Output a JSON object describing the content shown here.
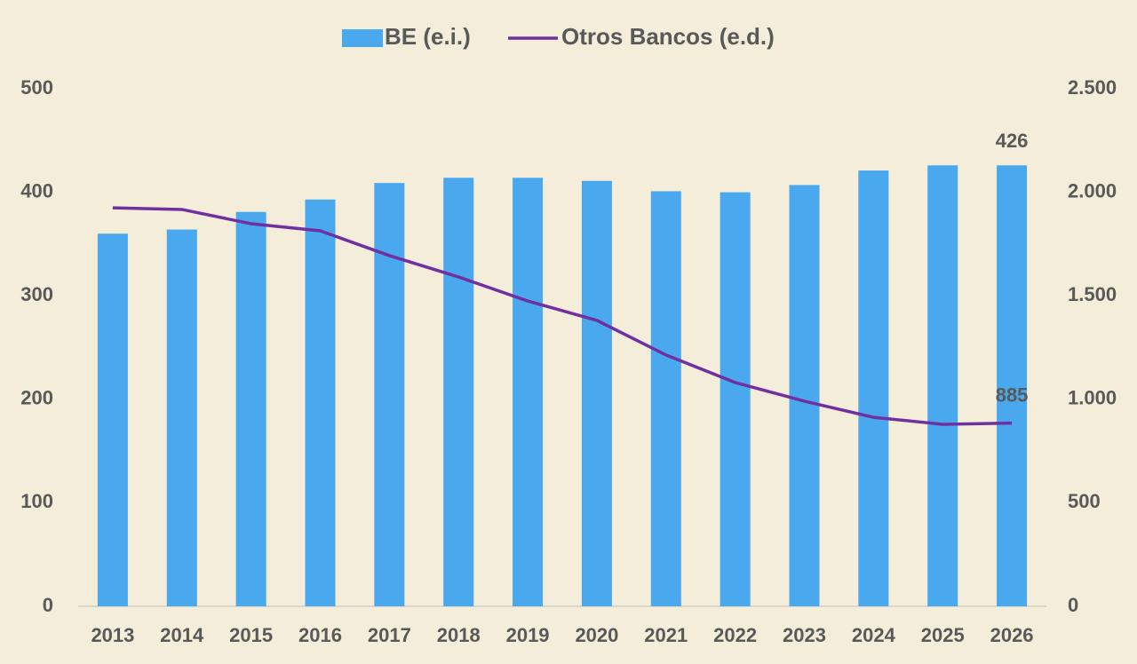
{
  "chart_data": {
    "type": "bar",
    "categories": [
      "2013",
      "2014",
      "2015",
      "2016",
      "2017",
      "2018",
      "2019",
      "2020",
      "2021",
      "2022",
      "2023",
      "2024",
      "2025",
      "2026"
    ],
    "series": [
      {
        "name": "BE (e.i.)",
        "type": "bar",
        "color": "#4aa8ef",
        "values": [
          360,
          364,
          381,
          393,
          409,
          414,
          414,
          411,
          401,
          400,
          407,
          421,
          426,
          426
        ],
        "value_labels": [
          null,
          null,
          null,
          null,
          null,
          null,
          null,
          null,
          null,
          null,
          null,
          null,
          null,
          "426"
        ]
      },
      {
        "name": "Otros Bancos (e.d.)",
        "type": "line",
        "axis": "y2",
        "color": "#7030a0",
        "values": [
          1925,
          1917,
          1848,
          1814,
          1694,
          1591,
          1475,
          1381,
          1214,
          1081,
          991,
          913,
          879,
          885
        ],
        "value_labels": [
          null,
          null,
          null,
          null,
          null,
          null,
          null,
          null,
          null,
          null,
          null,
          null,
          null,
          "885"
        ]
      }
    ],
    "ylim": [
      0,
      500
    ],
    "yticks": [
      0,
      100,
      200,
      300,
      400,
      500
    ],
    "y2lim": [
      0,
      2500
    ],
    "y2ticks": [
      0,
      500,
      {
        "value": 1000,
        "label": "1.000"
      },
      {
        "value": 1500,
        "label": "1.500"
      },
      {
        "value": 2000,
        "label": "2.000"
      },
      {
        "value": 2500,
        "label": "2.500"
      }
    ],
    "legend": "top"
  }
}
